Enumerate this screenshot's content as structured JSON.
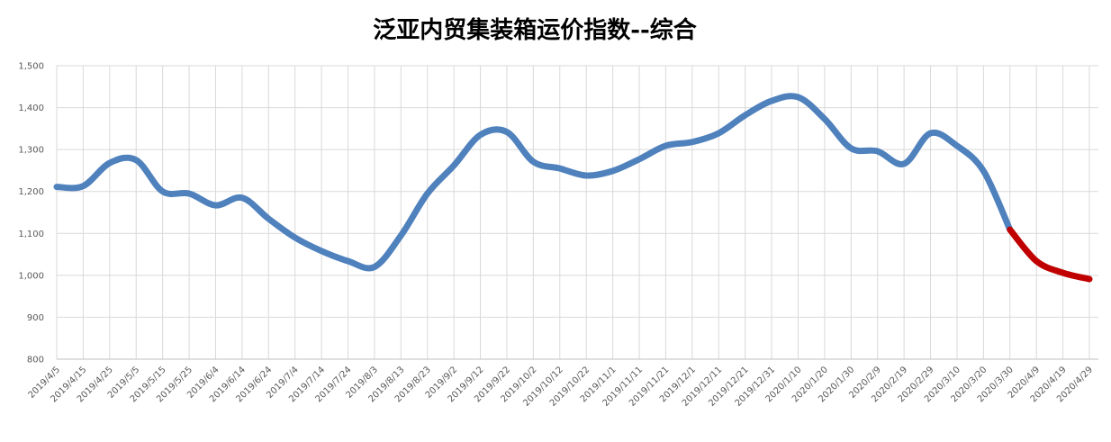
{
  "chart_data": {
    "type": "line",
    "title": "泛亚内贸集装箱运价指数--综合",
    "categories": [
      "2019/4/5",
      "2019/4/15",
      "2019/4/25",
      "2019/5/5",
      "2019/5/15",
      "2019/5/25",
      "2019/6/4",
      "2019/6/14",
      "2019/6/24",
      "2019/7/4",
      "2019/7/14",
      "2019/7/24",
      "2019/8/3",
      "2019/8/13",
      "2019/8/23",
      "2019/9/2",
      "2019/9/12",
      "2019/9/22",
      "2019/10/2",
      "2019/10/12",
      "2019/10/22",
      "2019/11/1",
      "2019/11/11",
      "2019/11/21",
      "2019/12/1",
      "2019/12/11",
      "2019/12/21",
      "2019/12/31",
      "2020/1/10",
      "2020/1/20",
      "2020/1/30",
      "2020/2/9",
      "2020/2/19",
      "2020/2/29",
      "2020/3/10",
      "2020/3/20",
      "2020/3/30",
      "2020/4/9",
      "2020/4/19",
      "2020/4/29"
    ],
    "series": [
      {
        "color": "#4f81bd",
        "values": [
          1211,
          1213,
          1268,
          1275,
          1200,
          1195,
          1167,
          1185,
          1135,
          1090,
          1058,
          1034,
          1020,
          1095,
          1195,
          1262,
          1335,
          1342,
          1271,
          1255,
          1238,
          1249,
          1277,
          1309,
          1318,
          1339,
          1382,
          1416,
          1425,
          1373,
          1303,
          1296,
          1266,
          1339,
          1309,
          1249,
          1109,
          null,
          null,
          null
        ]
      },
      {
        "color": "#c00000",
        "values": [
          null,
          null,
          null,
          null,
          null,
          null,
          null,
          null,
          null,
          null,
          null,
          null,
          null,
          null,
          null,
          null,
          null,
          null,
          null,
          null,
          null,
          null,
          null,
          null,
          null,
          null,
          null,
          null,
          null,
          null,
          null,
          null,
          null,
          null,
          null,
          null,
          1109,
          1034,
          1006,
          991
        ]
      }
    ],
    "ylim": [
      800,
      1500
    ],
    "yticks": [
      800,
      900,
      {
        "value": 1000,
        "label": "1,000"
      },
      {
        "value": 1100,
        "label": "1,100"
      },
      {
        "value": 1200,
        "label": "1,200"
      },
      {
        "value": 1300,
        "label": "1,300"
      },
      {
        "value": 1400,
        "label": "1,400"
      },
      {
        "value": 1500,
        "label": "1,500"
      }
    ],
    "grid": true
  }
}
